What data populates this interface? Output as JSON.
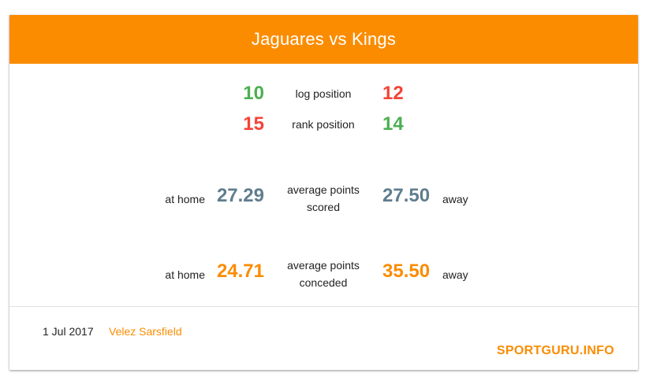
{
  "header": {
    "title": "Jaguares vs Kings"
  },
  "log": {
    "home": "10",
    "label": "log position",
    "away": "12"
  },
  "rank": {
    "home": "15",
    "label": "rank position",
    "away": "14"
  },
  "scored": {
    "home_prefix": "at home",
    "home_value": "27.29",
    "label_line1": "average points",
    "label_line2": "scored",
    "away_value": "27.50",
    "away_suffix": "away"
  },
  "conceded": {
    "home_prefix": "at home",
    "home_value": "24.71",
    "label_line1": "average points",
    "label_line2": "conceded",
    "away_value": "35.50",
    "away_suffix": "away"
  },
  "footer": {
    "date": "1 Jul 2017",
    "venue": "Velez Sarsfield",
    "brand": "SPORTGURU.INFO"
  },
  "colors": {
    "header": "#fb8c00",
    "better": "#4caf50",
    "worse": "#f44336",
    "scored": "#5f7d8e",
    "conceded": "#fb8c00"
  }
}
